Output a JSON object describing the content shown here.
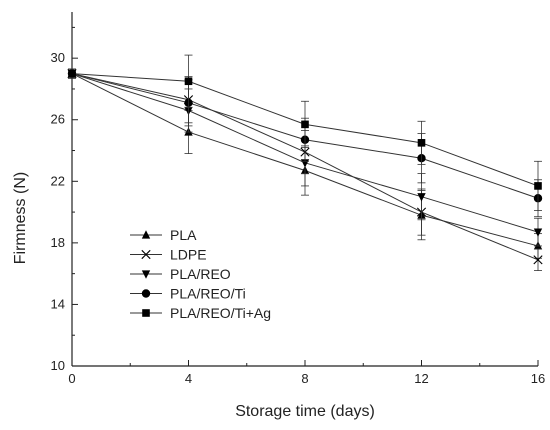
{
  "chart_data": {
    "type": "line",
    "xlabel": "Storage time (days)",
    "ylabel": "Firmness (N)",
    "xlim": [
      0,
      16
    ],
    "ylim": [
      10,
      33
    ],
    "x_ticks": [
      "0",
      "4",
      "8",
      "12",
      "16"
    ],
    "y_ticks": [
      "10",
      "14",
      "18",
      "22",
      "26",
      "30"
    ],
    "grid": false,
    "legend_position": "lower-left",
    "x": [
      0,
      4,
      8,
      12,
      16
    ],
    "series": [
      {
        "name": "PLA",
        "marker": "triangle-up",
        "values": [
          29.0,
          25.2,
          22.7,
          19.8,
          17.8
        ],
        "errors": [
          0.3,
          1.4,
          1.6,
          1.6,
          0.8
        ]
      },
      {
        "name": "LDPE",
        "marker": "x",
        "values": [
          29.0,
          27.3,
          23.9,
          20.0,
          16.9
        ],
        "errors": [
          0.3,
          1.5,
          1.4,
          1.5,
          0.7
        ]
      },
      {
        "name": "PLA/REO",
        "marker": "triangle-down",
        "values": [
          29.0,
          26.6,
          23.2,
          21.0,
          18.7
        ],
        "errors": [
          0.3,
          1.4,
          1.5,
          1.5,
          0.9
        ]
      },
      {
        "name": "PLA/REO/Ti",
        "marker": "circle",
        "values": [
          29.0,
          27.1,
          24.7,
          23.5,
          20.9
        ],
        "errors": [
          0.3,
          1.5,
          1.4,
          1.6,
          1.2
        ]
      },
      {
        "name": "PLA/REO/Ti+Ag",
        "marker": "square",
        "values": [
          29.0,
          28.5,
          25.7,
          24.5,
          21.7
        ],
        "errors": [
          0.3,
          1.7,
          1.5,
          1.4,
          1.6
        ]
      }
    ]
  }
}
